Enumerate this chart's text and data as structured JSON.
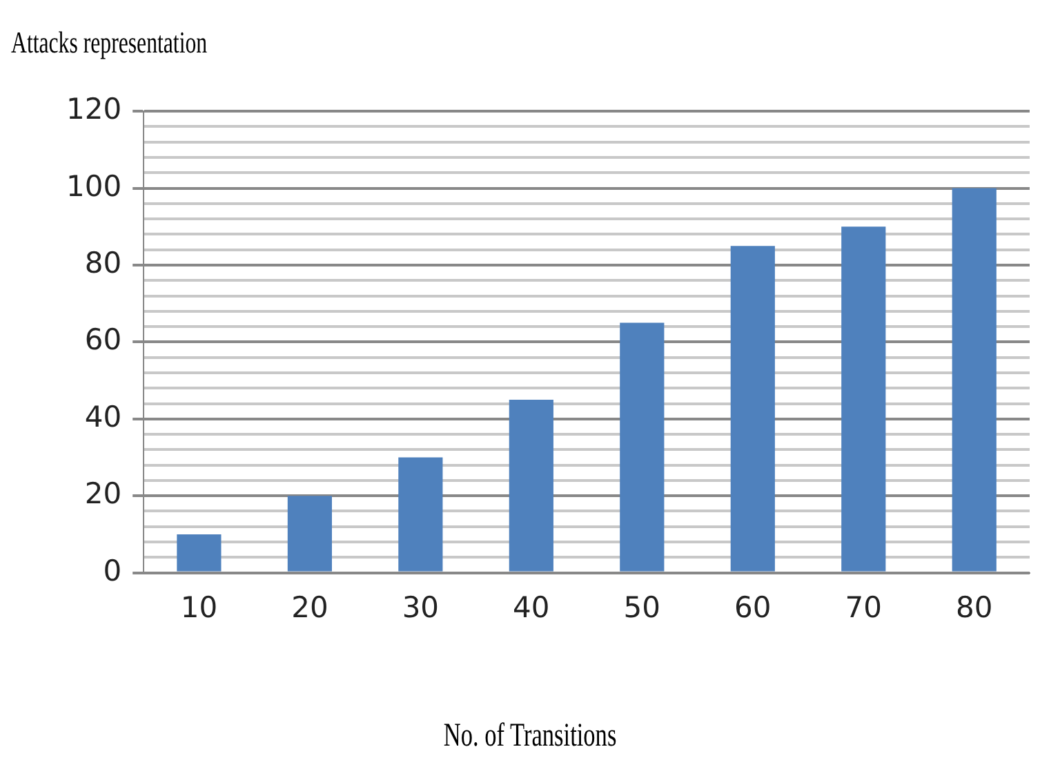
{
  "chart_data": {
    "type": "bar",
    "ylabel": "Attacks representation",
    "xlabel": "No. of Transitions",
    "categories": [
      "10",
      "20",
      "30",
      "40",
      "50",
      "60",
      "70",
      "80"
    ],
    "values": [
      10,
      20,
      30,
      45,
      65,
      85,
      90,
      100
    ],
    "color": "#4f81bd",
    "ylim": [
      0,
      120
    ],
    "yticks": [
      0,
      {
        "value": 4,
        "label": null
      },
      {
        "value": 8,
        "label": null
      },
      {
        "value": 12,
        "label": null
      },
      {
        "value": 16,
        "label": null
      },
      20,
      {
        "value": 24,
        "label": null
      },
      {
        "value": 28,
        "label": null
      },
      {
        "value": 32,
        "label": null
      },
      {
        "value": 36,
        "label": null
      },
      40,
      {
        "value": 44,
        "label": null
      },
      {
        "value": 48,
        "label": null
      },
      {
        "value": 52,
        "label": null
      },
      {
        "value": 56,
        "label": null
      },
      60,
      {
        "value": 64,
        "label": null
      },
      {
        "value": 68,
        "label": null
      },
      {
        "value": 72,
        "label": null
      },
      {
        "value": 76,
        "label": null
      },
      80,
      {
        "value": 84,
        "label": null
      },
      {
        "value": 88,
        "label": null
      },
      {
        "value": 92,
        "label": null
      },
      {
        "value": 96,
        "label": null
      },
      100,
      {
        "value": 104,
        "label": null
      },
      {
        "value": 108,
        "label": null
      },
      {
        "value": 112,
        "label": null
      },
      {
        "value": 116,
        "label": null
      },
      120
    ],
    "grid": "y",
    "legend": false
  }
}
